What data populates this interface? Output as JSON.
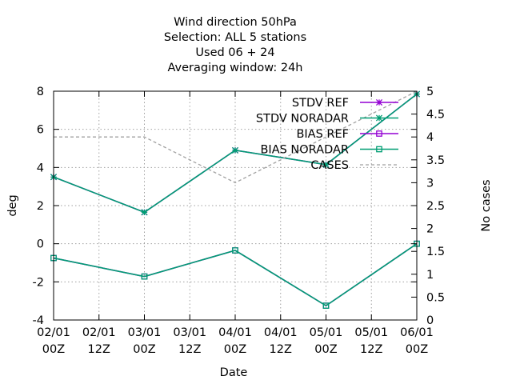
{
  "chart_data": {
    "type": "line",
    "title_lines": [
      "Wind direction 50hPa",
      "Selection: ALL       5 stations",
      "Used  06  + 24",
      "Averaging window: 24h"
    ],
    "xlabel": "Date",
    "ylabel": "deg",
    "y2label": "No cases",
    "x": [
      "02/01 00Z",
      "03/01 00Z",
      "04/01 00Z",
      "05/01 00Z",
      "06/01 00Z"
    ],
    "x_ticks": [
      {
        "line1": "02/01",
        "line2": "00Z"
      },
      {
        "line1": "02/01",
        "line2": "12Z"
      },
      {
        "line1": "03/01",
        "line2": "00Z"
      },
      {
        "line1": "03/01",
        "line2": "12Z"
      },
      {
        "line1": "04/01",
        "line2": "00Z"
      },
      {
        "line1": "04/01",
        "line2": "12Z"
      },
      {
        "line1": "05/01",
        "line2": "00Z"
      },
      {
        "line1": "05/01",
        "line2": "12Z"
      },
      {
        "line1": "06/01",
        "line2": "00Z"
      }
    ],
    "ylim": [
      -4,
      8
    ],
    "y_ticks": [
      "-4",
      "-2",
      "0",
      "2",
      "4",
      "6",
      "8"
    ],
    "y2lim": [
      0,
      5
    ],
    "y2_ticks": [
      "0",
      "0.5",
      "1",
      "1.5",
      "2",
      "2.5",
      "3",
      "3.5",
      "4",
      "4.5",
      "5"
    ],
    "grid": true,
    "legend_position": "top-right",
    "series": [
      {
        "name": "STDV REF",
        "axis": "y",
        "color": "#9400d3",
        "marker": "star",
        "dash": "solid",
        "values": [
          3.5,
          1.65,
          4.9,
          4.15,
          7.85
        ]
      },
      {
        "name": "STDV NORADAR",
        "axis": "y",
        "color": "#009e73",
        "marker": "star",
        "dash": "solid",
        "values": [
          3.5,
          1.65,
          4.9,
          4.15,
          7.85
        ]
      },
      {
        "name": "BIAS REF",
        "axis": "y",
        "color": "#9400d3",
        "marker": "square",
        "dash": "solid",
        "values": [
          -0.75,
          -1.72,
          -0.35,
          -3.25,
          0.0
        ]
      },
      {
        "name": "BIAS NORADAR",
        "axis": "y",
        "color": "#009e73",
        "marker": "square",
        "dash": "solid",
        "values": [
          -0.75,
          -1.72,
          -0.35,
          -3.25,
          0.0
        ]
      },
      {
        "name": "CASES",
        "axis": "y2",
        "color": "#a0a0a0",
        "marker": "none",
        "dash": "dashed",
        "values": [
          4,
          4,
          3,
          4,
          5
        ]
      }
    ]
  }
}
